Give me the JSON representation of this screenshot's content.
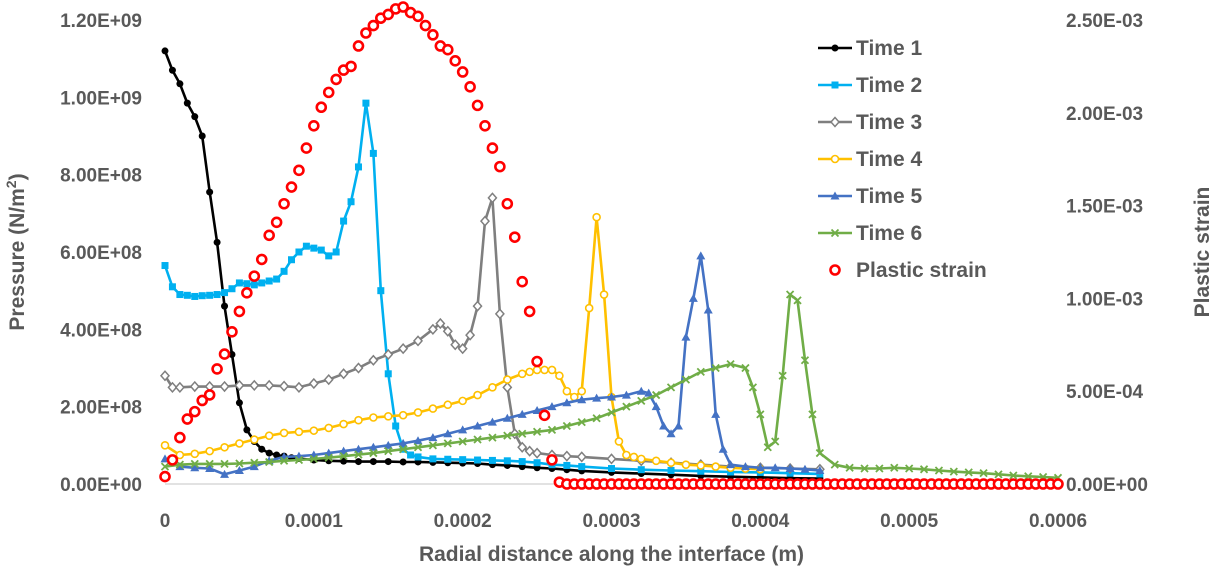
{
  "chart_data": {
    "type": "line",
    "title": "",
    "xlabel": "Radial distance along the interface (m)",
    "ylabel": "Pressure (N/m",
    "ylabel_sup": "2",
    "ylabel_close": ")",
    "y2label": "Plastic strain",
    "xlim": [
      0,
      0.0006
    ],
    "ylim": [
      0,
      1200000000
    ],
    "y2lim": [
      0,
      0.0025
    ],
    "x_ticks": [
      0,
      0.0001,
      0.0002,
      0.0003,
      0.0004,
      0.0005,
      0.0006
    ],
    "x_tick_labels": [
      "0",
      "0.0001",
      "0.0002",
      "0.0003",
      "0.0004",
      "0.0005",
      "0.0006"
    ],
    "y_ticks": [
      0,
      200000000,
      400000000,
      600000000,
      800000000,
      1000000000,
      1200000000
    ],
    "y_tick_labels": [
      "0.00E+00",
      "2.00E+08",
      "4.00E+08",
      "6.00E+08",
      "8.00E+08",
      "1.00E+09",
      "1.20E+09"
    ],
    "y2_ticks": [
      0,
      0.0005,
      0.001,
      0.0015,
      0.002,
      0.0025
    ],
    "y2_tick_labels": [
      "0.00E+00",
      "5.00E-04",
      "1.00E-03",
      "1.50E-03",
      "2.00E-03",
      "2.50E-03"
    ],
    "grid": false,
    "legend_position": "top-right",
    "series": [
      {
        "name": "Time 1",
        "color": "#000000",
        "marker": "circle",
        "axis": "left",
        "x": [
          0,
          5e-06,
          1e-05,
          1.5e-05,
          2e-05,
          2.5e-05,
          3e-05,
          3.5e-05,
          4e-05,
          4.5e-05,
          5e-05,
          5.5e-05,
          6e-05,
          6.5e-05,
          7e-05,
          7.5e-05,
          8e-05,
          8.5e-05,
          9e-05,
          0.0001,
          0.00011,
          0.00012,
          0.00013,
          0.00014,
          0.00015,
          0.00016,
          0.00017,
          0.00018,
          0.00019,
          0.0002,
          0.00021,
          0.00022,
          0.00023,
          0.00024,
          0.00025,
          0.00026,
          0.00027,
          0.00028,
          0.0003,
          0.00032,
          0.00034,
          0.00036,
          0.00038,
          0.0004,
          0.00042,
          0.00044
        ],
        "y": [
          1120000000,
          1070000000,
          1035000000,
          985000000,
          950000000,
          900000000,
          755000000,
          625000000,
          460000000,
          335000000,
          210000000,
          140000000,
          110000000,
          90000000,
          80000000,
          75000000,
          72000000,
          68000000,
          66000000,
          62000000,
          60000000,
          59000000,
          58000000,
          58000000,
          58000000,
          57000000,
          57000000,
          56000000,
          55000000,
          54000000,
          53000000,
          50000000,
          48000000,
          45000000,
          42000000,
          40000000,
          37000000,
          34000000,
          30000000,
          27000000,
          24000000,
          21000000,
          19000000,
          17000000,
          15000000,
          14000000
        ]
      },
      {
        "name": "Time 2",
        "color": "#00b0f0",
        "marker": "square",
        "axis": "left",
        "x": [
          0,
          5e-06,
          1e-05,
          1.5e-05,
          2e-05,
          2.5e-05,
          3e-05,
          3.5e-05,
          4e-05,
          4.5e-05,
          5e-05,
          5.5e-05,
          6e-05,
          6.5e-05,
          7e-05,
          7.5e-05,
          8e-05,
          8.5e-05,
          9e-05,
          9.5e-05,
          0.0001,
          0.000105,
          0.00011,
          0.000115,
          0.00012,
          0.000125,
          0.00013,
          0.000135,
          0.00014,
          0.000145,
          0.00015,
          0.000155,
          0.00016,
          0.000165,
          0.00017,
          0.00018,
          0.00019,
          0.0002,
          0.00021,
          0.00022,
          0.00023,
          0.00024,
          0.00025,
          0.00026,
          0.00027,
          0.00028,
          0.0003,
          0.00032,
          0.00034,
          0.00036,
          0.00038,
          0.0004,
          0.00042,
          0.00044
        ],
        "y": [
          565000000,
          510000000,
          490000000,
          488000000,
          485000000,
          487000000,
          488000000,
          490000000,
          495000000,
          505000000,
          520000000,
          518000000,
          515000000,
          520000000,
          525000000,
          530000000,
          550000000,
          580000000,
          600000000,
          615000000,
          610000000,
          605000000,
          590000000,
          600000000,
          680000000,
          730000000,
          820000000,
          985000000,
          855000000,
          500000000,
          285000000,
          150000000,
          90000000,
          75000000,
          70000000,
          65000000,
          64000000,
          63000000,
          62000000,
          61000000,
          60000000,
          58000000,
          55000000,
          50000000,
          48000000,
          45000000,
          40000000,
          37000000,
          35000000,
          33000000,
          31000000,
          30000000,
          28000000,
          26000000
        ]
      },
      {
        "name": "Time 3",
        "color": "#7f7f7f",
        "marker": "diamond",
        "axis": "left",
        "x": [
          0,
          5e-06,
          1e-05,
          2e-05,
          3e-05,
          4e-05,
          5e-05,
          6e-05,
          7e-05,
          8e-05,
          9e-05,
          0.0001,
          0.00011,
          0.00012,
          0.00013,
          0.00014,
          0.00015,
          0.00016,
          0.00017,
          0.00018,
          0.000185,
          0.00019,
          0.000195,
          0.0002,
          0.000205,
          0.00021,
          0.000215,
          0.00022,
          0.000225,
          0.00023,
          0.000235,
          0.00024,
          0.000245,
          0.00025,
          0.00026,
          0.00027,
          0.00028,
          0.0003,
          0.00032,
          0.00034,
          0.00036,
          0.00038,
          0.0004,
          0.00042,
          0.00044
        ],
        "y": [
          280000000,
          250000000,
          250000000,
          252000000,
          252000000,
          252000000,
          255000000,
          255000000,
          255000000,
          253000000,
          250000000,
          260000000,
          270000000,
          285000000,
          300000000,
          320000000,
          335000000,
          350000000,
          370000000,
          400000000,
          415000000,
          395000000,
          360000000,
          350000000,
          385000000,
          460000000,
          680000000,
          740000000,
          440000000,
          250000000,
          130000000,
          95000000,
          85000000,
          80000000,
          75000000,
          72000000,
          70000000,
          65000000,
          60000000,
          55000000,
          50000000,
          45000000,
          42000000,
          40000000,
          38000000
        ]
      },
      {
        "name": "Time 4",
        "color": "#ffc000",
        "marker": "circle-open",
        "axis": "left",
        "x": [
          0,
          1e-05,
          2e-05,
          3e-05,
          4e-05,
          5e-05,
          6e-05,
          7e-05,
          8e-05,
          9e-05,
          0.0001,
          0.00011,
          0.00012,
          0.00013,
          0.00014,
          0.00015,
          0.00016,
          0.00017,
          0.00018,
          0.00019,
          0.0002,
          0.00021,
          0.00022,
          0.00023,
          0.00024,
          0.000245,
          0.00025,
          0.000255,
          0.00026,
          0.000265,
          0.00027,
          0.000275,
          0.00028,
          0.000285,
          0.00029,
          0.000295,
          0.0003,
          0.000305,
          0.00031,
          0.000315,
          0.00032,
          0.00033,
          0.00034,
          0.00035,
          0.00036,
          0.00037,
          0.00038,
          0.00039,
          0.0004
        ],
        "y": [
          100000000,
          75000000,
          78000000,
          85000000,
          95000000,
          105000000,
          115000000,
          125000000,
          132000000,
          135000000,
          138000000,
          145000000,
          155000000,
          165000000,
          172000000,
          175000000,
          178000000,
          185000000,
          195000000,
          205000000,
          215000000,
          230000000,
          250000000,
          270000000,
          285000000,
          290000000,
          295000000,
          295000000,
          295000000,
          280000000,
          240000000,
          225000000,
          240000000,
          455000000,
          690000000,
          490000000,
          225000000,
          110000000,
          75000000,
          70000000,
          65000000,
          60000000,
          55000000,
          50000000,
          48000000,
          45000000,
          42000000,
          40000000,
          38000000
        ]
      },
      {
        "name": "Time 5",
        "color": "#4472c4",
        "marker": "triangle",
        "axis": "left",
        "x": [
          0,
          1e-05,
          2e-05,
          3e-05,
          4e-05,
          5e-05,
          6e-05,
          7e-05,
          8e-05,
          9e-05,
          0.0001,
          0.00011,
          0.00012,
          0.00013,
          0.00014,
          0.00015,
          0.00016,
          0.00017,
          0.00018,
          0.00019,
          0.0002,
          0.00021,
          0.00022,
          0.00023,
          0.00024,
          0.00025,
          0.00026,
          0.00027,
          0.00028,
          0.00029,
          0.0003,
          0.00031,
          0.00032,
          0.000325,
          0.00033,
          0.000335,
          0.00034,
          0.000345,
          0.00035,
          0.000355,
          0.00036,
          0.000365,
          0.00037,
          0.000375,
          0.00038,
          0.00039,
          0.0004,
          0.00041,
          0.00042,
          0.00043,
          0.00044
        ],
        "y": [
          65000000,
          45000000,
          42000000,
          40000000,
          25000000,
          35000000,
          45000000,
          60000000,
          70000000,
          72000000,
          75000000,
          80000000,
          85000000,
          90000000,
          95000000,
          100000000,
          105000000,
          112000000,
          120000000,
          130000000,
          140000000,
          150000000,
          160000000,
          170000000,
          180000000,
          190000000,
          200000000,
          210000000,
          218000000,
          222000000,
          225000000,
          230000000,
          240000000,
          235000000,
          200000000,
          150000000,
          130000000,
          150000000,
          380000000,
          480000000,
          590000000,
          450000000,
          180000000,
          90000000,
          50000000,
          45000000,
          42000000,
          42000000,
          40000000,
          38000000,
          35000000
        ]
      },
      {
        "name": "Time 6",
        "color": "#70ad47",
        "marker": "x",
        "axis": "left",
        "x": [
          0,
          1e-05,
          2e-05,
          3e-05,
          4e-05,
          5e-05,
          6e-05,
          7e-05,
          8e-05,
          9e-05,
          0.0001,
          0.00011,
          0.00012,
          0.00013,
          0.00014,
          0.00015,
          0.00016,
          0.00017,
          0.00018,
          0.00019,
          0.0002,
          0.00021,
          0.00022,
          0.00023,
          0.00024,
          0.00025,
          0.00026,
          0.00027,
          0.00028,
          0.00029,
          0.0003,
          0.00031,
          0.00032,
          0.00033,
          0.00034,
          0.00035,
          0.00036,
          0.00037,
          0.00038,
          0.00039,
          0.000395,
          0.0004,
          0.000405,
          0.00041,
          0.000415,
          0.00042,
          0.000425,
          0.00043,
          0.000435,
          0.00044,
          0.00045,
          0.00046,
          0.00047,
          0.00048,
          0.00049,
          0.0005,
          0.00051,
          0.00052,
          0.00053,
          0.00054,
          0.00055,
          0.00056,
          0.00057,
          0.00058,
          0.00059,
          0.0006
        ],
        "y": [
          45000000,
          50000000,
          52000000,
          52000000,
          52000000,
          53000000,
          55000000,
          57000000,
          60000000,
          62000000,
          65000000,
          68000000,
          72000000,
          76000000,
          80000000,
          85000000,
          90000000,
          95000000,
          100000000,
          105000000,
          110000000,
          115000000,
          120000000,
          125000000,
          130000000,
          135000000,
          140000000,
          150000000,
          160000000,
          170000000,
          185000000,
          200000000,
          215000000,
          230000000,
          250000000,
          270000000,
          290000000,
          300000000,
          310000000,
          300000000,
          250000000,
          180000000,
          95000000,
          110000000,
          280000000,
          490000000,
          475000000,
          320000000,
          180000000,
          80000000,
          50000000,
          42000000,
          40000000,
          40000000,
          42000000,
          40000000,
          38000000,
          35000000,
          32000000,
          30000000,
          28000000,
          25000000,
          22000000,
          20000000,
          18000000,
          16000000
        ]
      },
      {
        "name": "Plastic strain",
        "color": "#ff0000",
        "marker": "ring",
        "axis": "right",
        "line": false,
        "x": [
          0,
          5e-06,
          1e-05,
          1.5e-05,
          2e-05,
          2.5e-05,
          3e-05,
          3.5e-05,
          4e-05,
          4.5e-05,
          5e-05,
          5.5e-05,
          6e-05,
          6.5e-05,
          7e-05,
          7.5e-05,
          8e-05,
          8.5e-05,
          9e-05,
          9.5e-05,
          0.0001,
          0.000105,
          0.00011,
          0.000115,
          0.00012,
          0.000125,
          0.00013,
          0.000135,
          0.00014,
          0.000145,
          0.00015,
          0.000155,
          0.00016,
          0.000165,
          0.00017,
          0.000175,
          0.00018,
          0.000185,
          0.00019,
          0.000195,
          0.0002,
          0.000205,
          0.00021,
          0.000215,
          0.00022,
          0.000225,
          0.00023,
          0.000235,
          0.00024,
          0.000245,
          0.00025,
          0.000255,
          0.00026,
          0.000265,
          0.00027,
          0.000275,
          0.00028,
          0.000285,
          0.00029,
          0.000295,
          0.0003,
          0.000305,
          0.00031,
          0.000315,
          0.00032,
          0.000325,
          0.00033,
          0.000335,
          0.00034,
          0.000345,
          0.00035,
          0.000355,
          0.00036,
          0.000365,
          0.00037,
          0.000375,
          0.00038,
          0.000385,
          0.00039,
          0.000395,
          0.0004,
          0.000405,
          0.00041,
          0.000415,
          0.00042,
          0.000425,
          0.00043,
          0.000435,
          0.00044,
          0.000445,
          0.00045,
          0.000455,
          0.00046,
          0.000465,
          0.00047,
          0.000475,
          0.00048,
          0.000485,
          0.00049,
          0.000495,
          0.0005,
          0.000505,
          0.00051,
          0.000515,
          0.00052,
          0.000525,
          0.00053,
          0.000535,
          0.00054,
          0.000545,
          0.00055,
          0.000555,
          0.00056,
          0.000565,
          0.00057,
          0.000575,
          0.00058,
          0.000585,
          0.00059,
          0.000595,
          0.0006
        ],
        "y": [
          4e-05,
          0.00013,
          0.00025,
          0.00035,
          0.00039,
          0.00045,
          0.00048,
          0.00062,
          0.0007,
          0.00082,
          0.00093,
          0.00103,
          0.00112,
          0.00121,
          0.00134,
          0.00141,
          0.00151,
          0.0016,
          0.00169,
          0.00181,
          0.00193,
          0.00203,
          0.00211,
          0.00218,
          0.00223,
          0.00225,
          0.00236,
          0.00243,
          0.00247,
          0.00251,
          0.00253,
          0.00256,
          0.00257,
          0.00254,
          0.00252,
          0.00247,
          0.00242,
          0.00236,
          0.00234,
          0.00228,
          0.00222,
          0.00214,
          0.00204,
          0.00193,
          0.00181,
          0.00171,
          0.00151,
          0.00133,
          0.00109,
          0.00093,
          0.00066,
          0.00037,
          0.00013,
          1e-05,
          0,
          0,
          0,
          0,
          0,
          0,
          0,
          0,
          0,
          0,
          0,
          0,
          0,
          0,
          0,
          0,
          0,
          0,
          0,
          0,
          0,
          0,
          0,
          0,
          0,
          0,
          0,
          0,
          0,
          0,
          0,
          0,
          0,
          0,
          0,
          0,
          0,
          0,
          0,
          0,
          0,
          0,
          0,
          0,
          0,
          0,
          0,
          0,
          0,
          0,
          0,
          0,
          0,
          0,
          0,
          0,
          0,
          0,
          0,
          0,
          0,
          0,
          0,
          0,
          0,
          0,
          0
        ]
      }
    ]
  }
}
